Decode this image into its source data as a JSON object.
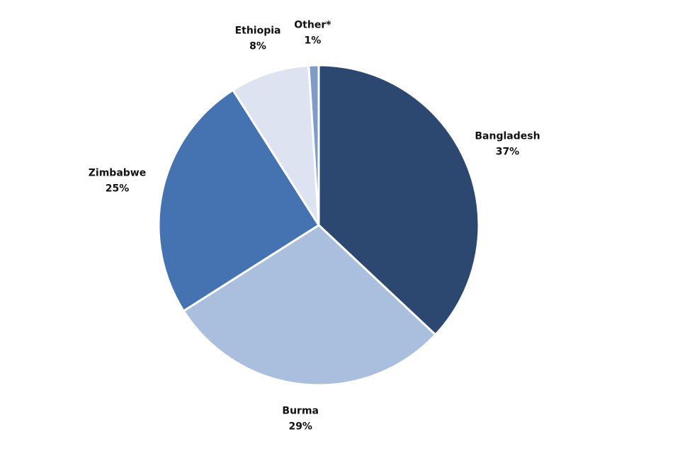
{
  "chart_data": {
    "type": "pie",
    "categories": [
      "Bangladesh",
      "Burma",
      "Zimbabwe",
      "Ethiopia",
      "Other*"
    ],
    "values": [
      37,
      29,
      25,
      8,
      1
    ],
    "value_labels": [
      "37%",
      "29%",
      "25%",
      "8%",
      "1%"
    ],
    "colors": [
      "#2c4770",
      "#aabfde",
      "#4572b0",
      "#dde3f0",
      "#7f9cc8"
    ]
  }
}
